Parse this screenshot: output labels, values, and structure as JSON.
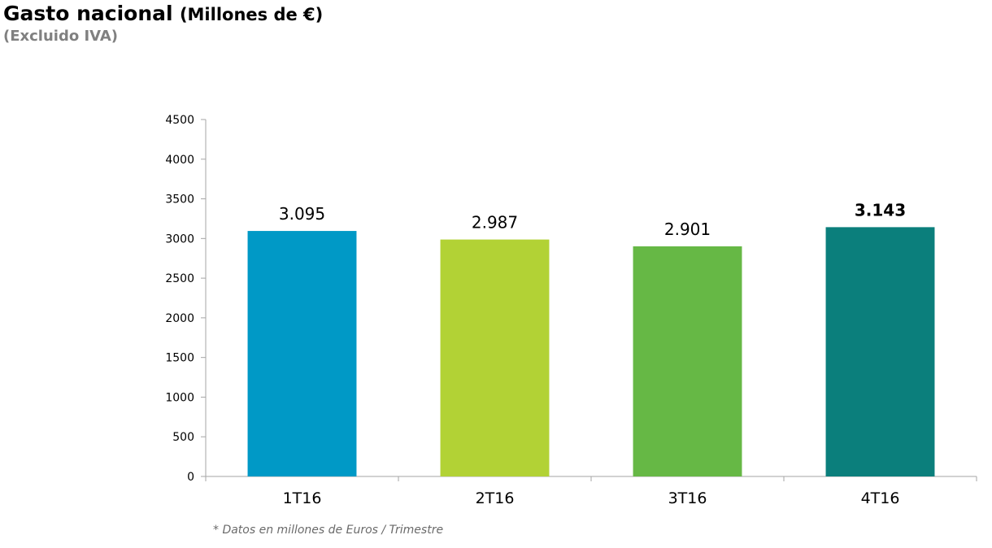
{
  "header": {
    "title_main": "Gasto nacional",
    "title_unit": "(Millones de €)",
    "subtitle": "(Excluido IVA)"
  },
  "footnote": "* Datos en millones de Euros / Trimestre",
  "chart_data": {
    "type": "bar",
    "title": "Gasto nacional (Millones de €)",
    "subtitle": "(Excluido IVA)",
    "xlabel": "",
    "ylabel": "",
    "categories": [
      "1T16",
      "2T16",
      "3T16",
      "4T16"
    ],
    "values": [
      3095,
      2987,
      2901,
      3143
    ],
    "data_labels": [
      "3.095",
      "2.987",
      "2.901",
      "3.143"
    ],
    "highlighted_label_index": 3,
    "colors": [
      "#0099c6",
      "#b2d235",
      "#66b845",
      "#0b7f7c"
    ],
    "ylim": [
      0,
      4500
    ],
    "yticks": [
      0,
      500,
      1000,
      1500,
      2000,
      2500,
      3000,
      3500,
      4000,
      4500
    ],
    "grid": false,
    "legend": "none"
  }
}
